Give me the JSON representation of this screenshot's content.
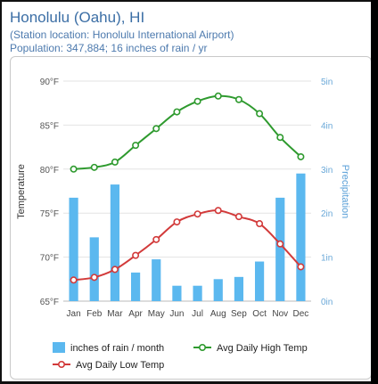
{
  "header": {
    "title": "Honolulu (Oahu), HI",
    "station": "(Station location: Honolulu International Airport)",
    "population": "Population: 347,884; 16 inches of rain / yr"
  },
  "chart_data": {
    "type": "bar",
    "categories": [
      "Jan",
      "Feb",
      "Mar",
      "Apr",
      "May",
      "Jun",
      "Jul",
      "Aug",
      "Sep",
      "Oct",
      "Nov",
      "Dec"
    ],
    "series": [
      {
        "name": "inches of rain / month",
        "type": "bar",
        "axis": "right",
        "color": "#5bb8ef",
        "values": [
          2.35,
          1.45,
          2.65,
          0.65,
          0.95,
          0.35,
          0.35,
          0.5,
          0.55,
          0.9,
          2.35,
          2.9
        ]
      },
      {
        "name": "Avg Daily High Temp",
        "type": "line",
        "axis": "left",
        "color": "#2e9a2e",
        "values": [
          80.0,
          80.2,
          80.8,
          82.7,
          84.6,
          86.5,
          87.7,
          88.3,
          87.9,
          86.3,
          83.6,
          81.4
        ]
      },
      {
        "name": "Avg Daily Low Temp",
        "type": "line",
        "axis": "left",
        "color": "#d23a3a",
        "values": [
          67.4,
          67.7,
          68.6,
          70.2,
          72.0,
          74.0,
          74.9,
          75.3,
          74.6,
          73.8,
          71.5,
          68.9
        ]
      }
    ],
    "y_left": {
      "label": "Temperature",
      "range": [
        65,
        90
      ],
      "ticks": [
        65,
        70,
        75,
        80,
        85,
        90
      ],
      "tick_labels": [
        "65°F",
        "70°F",
        "75°F",
        "80°F",
        "85°F",
        "90°F"
      ]
    },
    "y_right": {
      "label": "Precipitation",
      "range": [
        0,
        5
      ],
      "ticks": [
        0,
        1,
        2,
        3,
        4,
        5
      ],
      "tick_labels": [
        "0in",
        "1in",
        "2in",
        "3in",
        "4in",
        "5in"
      ]
    },
    "grid": true,
    "legend_position": "bottom"
  }
}
